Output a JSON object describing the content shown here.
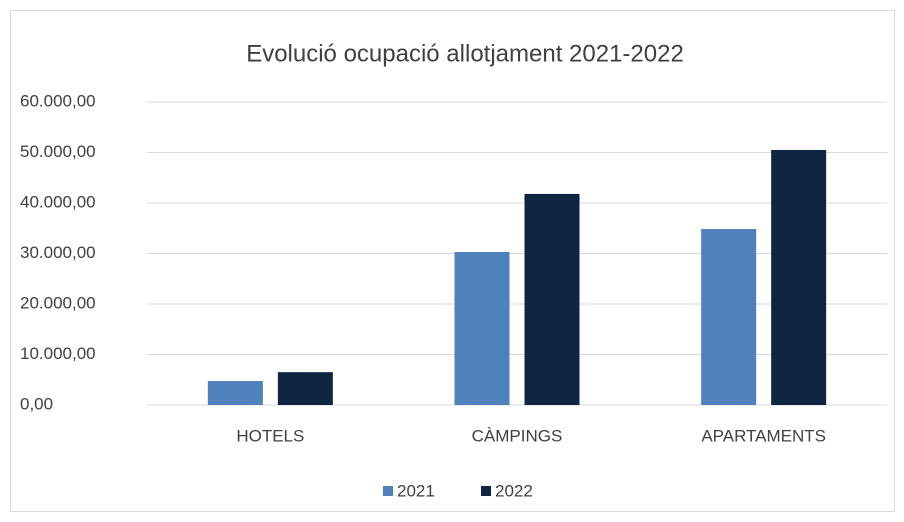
{
  "chart_data": {
    "type": "bar",
    "title": "Evolució ocupació allotjament 2021-2022",
    "categories": [
      "HOTELS",
      "CÀMPINGS",
      "APARTAMENTS"
    ],
    "series": [
      {
        "name": "2021",
        "color": "#4f81bd",
        "values": [
          4750,
          30300,
          34850
        ]
      },
      {
        "name": "2022",
        "color": "#0f2542",
        "values": [
          6500,
          41800,
          50500
        ]
      }
    ],
    "ylim": [
      0,
      60000
    ],
    "yticks": [
      {
        "value": 0,
        "label": "0,00"
      },
      {
        "value": 10000,
        "label": "10.000,00"
      },
      {
        "value": 20000,
        "label": "20.000,00"
      },
      {
        "value": 30000,
        "label": "30.000,00"
      },
      {
        "value": 40000,
        "label": "40.000,00"
      },
      {
        "value": 50000,
        "label": "50.000,00"
      },
      {
        "value": 60000,
        "label": "60.000,00"
      }
    ],
    "grid": true,
    "legend": "bottom"
  }
}
